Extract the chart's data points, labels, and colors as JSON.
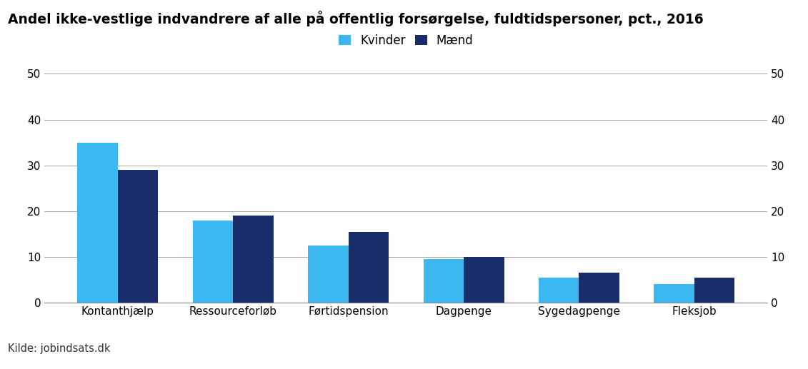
{
  "title": "Andel ikke-vestlige indvandrere af alle på offentlig forsørgelse, fuldtidspersoner, pct., 2016",
  "categories": [
    "Kontanthjælp",
    "Ressourceforløb",
    "Førtidspension",
    "Dagpenge",
    "Sygedagpenge",
    "Fleksjob"
  ],
  "kvinder": [
    35,
    18,
    12.5,
    9.5,
    5.5,
    4
  ],
  "maend": [
    29,
    19,
    15.5,
    10,
    6.5,
    5.5
  ],
  "color_kvinder": "#3CB8F0",
  "color_maend": "#1A2D6B",
  "ylim": [
    0,
    50
  ],
  "yticks": [
    0,
    10,
    20,
    30,
    40,
    50
  ],
  "legend_kvinder": "Kvinder",
  "legend_maend": "Mænd",
  "source": "Kilde: jobindsats.dk",
  "fig_background": "#ffffff",
  "plot_background": "#ffffff",
  "footer_background": "#e8e8e8",
  "bar_width": 0.35,
  "title_fontsize": 13.5,
  "axis_fontsize": 11,
  "legend_fontsize": 12,
  "source_fontsize": 10.5
}
